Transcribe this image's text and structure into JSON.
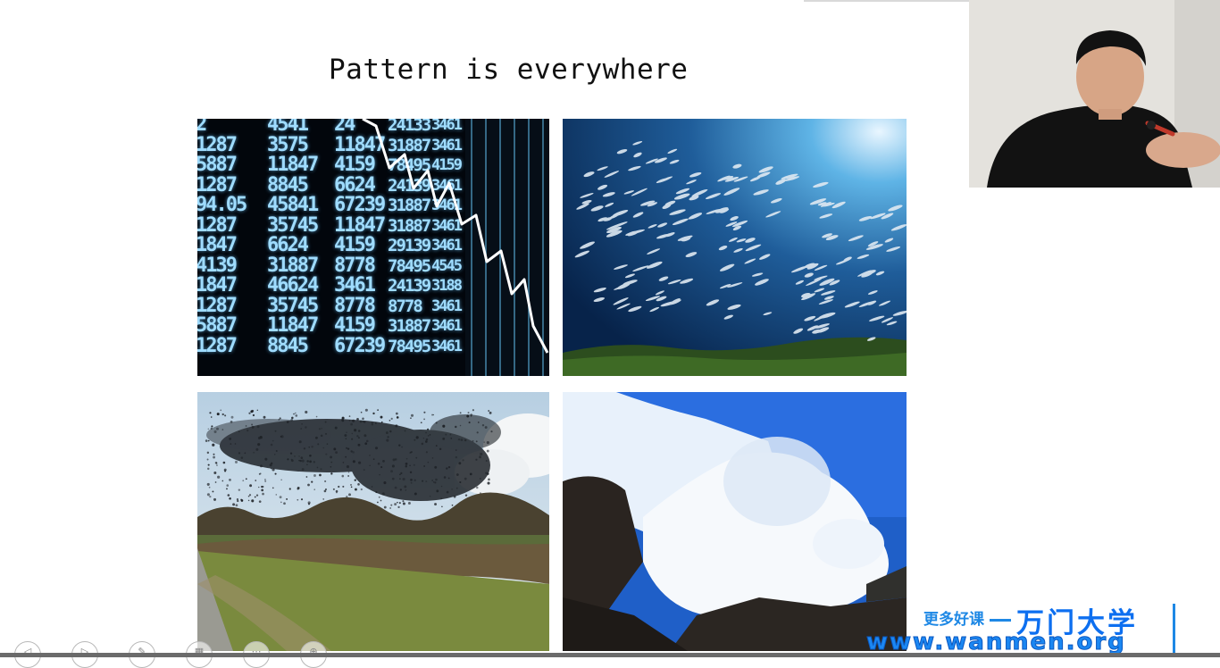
{
  "slide": {
    "title": "Pattern is everywhere",
    "photos": [
      {
        "name": "stock-ticker-photo",
        "description_icon": "stock-board-image"
      },
      {
        "name": "fish-school-photo",
        "description_icon": "fish-school-image"
      },
      {
        "name": "bird-murmuration-photo",
        "description_icon": "bird-flock-image"
      },
      {
        "name": "avalanche-photo",
        "description_icon": "avalanche-image"
      }
    ],
    "ticker_columns": [
      "2\n1287\n5887\n1287\n94.05\n1287\n1847\n4139\n1847\n1287\n5887\n1287",
      "4541\n3575\n11847\n8845\n45841\n35745\n6624\n31887\n46624\n35745\n11847\n8845",
      "24\n11847\n4159\n6624\n67239\n11847\n4159\n8778\n3461\n8778\n4159\n67239",
      "24133\n31887\n78495\n24139\n31887\n31887\n29139\n78495\n24139\n8778\n31887\n78495",
      "3461\n3461\n4159\n3461\n3461\n3461\n3461\n4545\n3188\n3461\n3461\n3461"
    ]
  },
  "webcam": {
    "label": "presenter-video"
  },
  "watermark": {
    "slogan": "更多好课",
    "brand": "万门大学",
    "url": "www.wanmen.org"
  },
  "toolbar": {
    "buttons": [
      {
        "name": "prev-slide-button",
        "glyph": "◁"
      },
      {
        "name": "next-slide-button",
        "glyph": "▷"
      },
      {
        "name": "pen-tool-button",
        "glyph": "✎"
      },
      {
        "name": "slides-overview-button",
        "glyph": "▦"
      },
      {
        "name": "more-options-button",
        "glyph": "⋯"
      },
      {
        "name": "zoom-button",
        "glyph": "⊕"
      }
    ]
  },
  "colors": {
    "brand_blue": "#1e88e5",
    "ticker_text": "#9fdcff"
  }
}
